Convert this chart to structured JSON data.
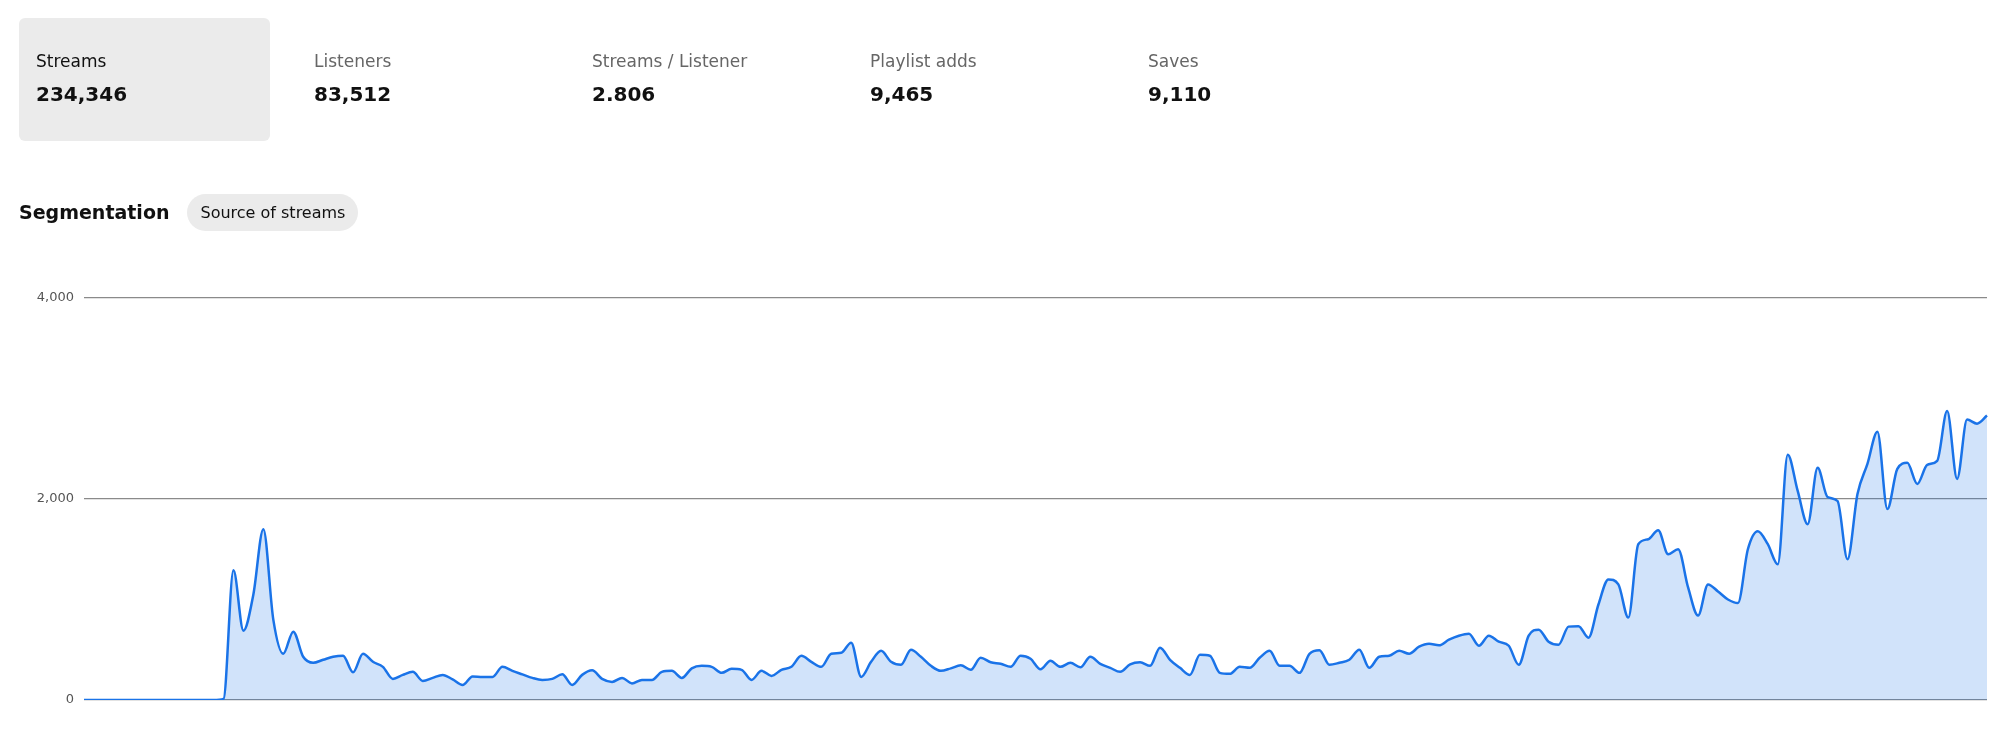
{
  "chart_data": [
    {
      "type": "other",
      "annotations": [
        "Streams",
        "234,346",
        "Listeners",
        "83,512",
        "Streams / Listener",
        "2.806",
        "Playlist adds",
        "9,465",
        "Saves",
        "9,110"
      ]
    },
    {
      "type": "area",
      "title": "Segmentation",
      "annotations": [
        "Source of streams"
      ],
      "categories": [
        null,
        null,
        null,
        null,
        null,
        null,
        null,
        null,
        null,
        null,
        null,
        null,
        null,
        null,
        null,
        null,
        null,
        null,
        null,
        null,
        null,
        null,
        null,
        null,
        null,
        null,
        null,
        null,
        null,
        null,
        null,
        null,
        null,
        null,
        null,
        null,
        null,
        null,
        null,
        null,
        null,
        null,
        null,
        null,
        null,
        null,
        null,
        null,
        null,
        null,
        null,
        null,
        null,
        null,
        null,
        null,
        null,
        null,
        null,
        null,
        null,
        null,
        null,
        null,
        null,
        null,
        null,
        null,
        null,
        null,
        null,
        null,
        null,
        null,
        null,
        null,
        null,
        null,
        null,
        null,
        null,
        null,
        null,
        null,
        null,
        null,
        null,
        null,
        null,
        null,
        null,
        null,
        null,
        null,
        null,
        null,
        null,
        null,
        null,
        null,
        null,
        null,
        null,
        null,
        null,
        null,
        null,
        null,
        null,
        null,
        null,
        null,
        null,
        null,
        null,
        null,
        null,
        null,
        null,
        null,
        null,
        null,
        null,
        null,
        null,
        null,
        null,
        null,
        null,
        null,
        null,
        null,
        null,
        null,
        null,
        null,
        null,
        null,
        null,
        null,
        null,
        null,
        null,
        null,
        null,
        null,
        null,
        null,
        null,
        null,
        null,
        null,
        null,
        null,
        null,
        null,
        null,
        null,
        null,
        null,
        null,
        null,
        null,
        null,
        null,
        null,
        null,
        null,
        null,
        null,
        null,
        null,
        null,
        null,
        null,
        null,
        null,
        null,
        null,
        null,
        null,
        null,
        null,
        null,
        null,
        null,
        null,
        null,
        null,
        null,
        null,
        null
      ],
      "series": [
        {
          "color": "#1a73e8",
          "values": [
            0,
            0,
            0,
            0,
            0,
            0,
            0,
            0,
            0,
            0,
            0,
            0,
            0,
            0,
            10,
            1290,
            690,
            1050,
            1700,
            800,
            460,
            680,
            430,
            370,
            400,
            430,
            440,
            275,
            460,
            380,
            330,
            210,
            250,
            280,
            190,
            220,
            250,
            205,
            150,
            235,
            230,
            230,
            330,
            290,
            255,
            220,
            200,
            210,
            255,
            150,
            250,
            295,
            210,
            180,
            220,
            165,
            200,
            200,
            280,
            290,
            220,
            315,
            340,
            330,
            270,
            310,
            300,
            200,
            290,
            240,
            300,
            330,
            440,
            380,
            330,
            460,
            470,
            570,
            230,
            380,
            490,
            380,
            350,
            500,
            430,
            340,
            290,
            315,
            345,
            300,
            420,
            375,
            360,
            330,
            440,
            410,
            305,
            390,
            330,
            370,
            325,
            430,
            360,
            320,
            280,
            355,
            375,
            340,
            520,
            400,
            320,
            250,
            450,
            440,
            270,
            260,
            330,
            320,
            420,
            490,
            340,
            340,
            270,
            460,
            495,
            350,
            370,
            400,
            500,
            320,
            430,
            440,
            490,
            460,
            530,
            560,
            545,
            600,
            640,
            660,
            540,
            640,
            580,
            540,
            350,
            640,
            700,
            580,
            550,
            730,
            735,
            620,
            950,
            1200,
            1150,
            820,
            1550,
            1600,
            1690,
            1450,
            1500,
            1120,
            840,
            1150,
            1080,
            1000,
            965,
            1500,
            1680,
            1550,
            1350,
            2440,
            2080,
            1750,
            2310,
            2020,
            1980,
            1400,
            2050,
            2350,
            2670,
            1900,
            2300,
            2360,
            2150,
            2340,
            2380,
            2875,
            2200,
            2790,
            2750,
            2830
          ]
        }
      ],
      "ylim": [
        0,
        4000
      ],
      "yticks": [
        0,
        {
          "value": 2000,
          "label": "2,000"
        },
        {
          "value": 4000,
          "label": "4,000"
        }
      ],
      "tick_labels": "y",
      "grid": "y",
      "legend": false,
      "marker": "none",
      "line_style": "solid"
    }
  ]
}
